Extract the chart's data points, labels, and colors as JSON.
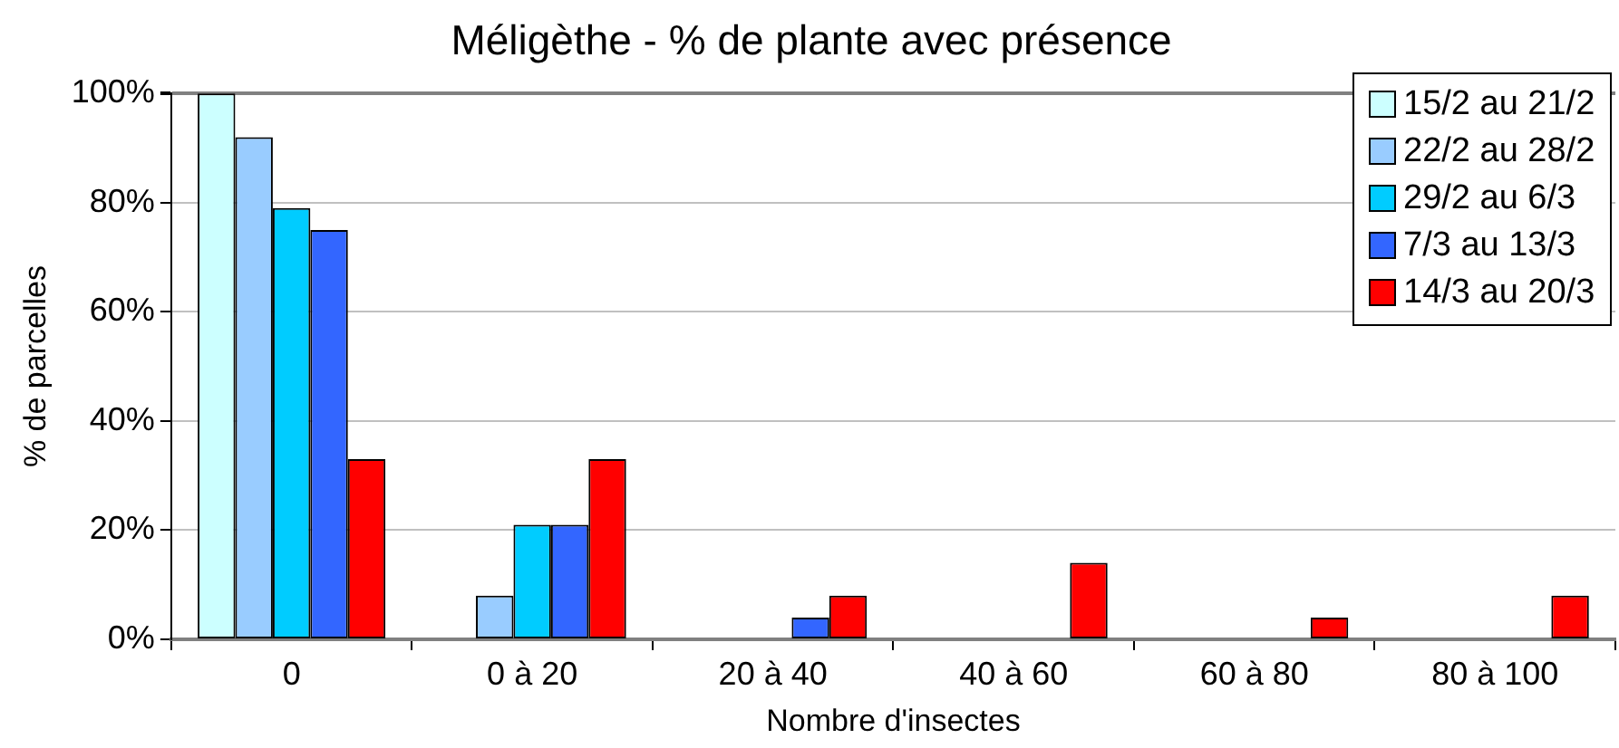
{
  "chart_data": {
    "type": "bar",
    "title": "Méligèthe - % de plante avec présence",
    "xlabel": "Nombre d'insectes",
    "ylabel": "% de parcelles",
    "categories": [
      "0",
      "0 à 20",
      "20 à 40",
      "40 à 60",
      "60 à 80",
      "80 à 100"
    ],
    "series": [
      {
        "name": "15/2 au 21/2",
        "color": "#ccffff",
        "values": [
          100,
          0,
          0,
          0,
          0,
          0
        ]
      },
      {
        "name": "22/2 au 28/2",
        "color": "#99ccff",
        "values": [
          92,
          8,
          0,
          0,
          0,
          0
        ]
      },
      {
        "name": "29/2 au 6/3",
        "color": "#00ccff",
        "values": [
          79,
          21,
          0,
          0,
          0,
          0
        ]
      },
      {
        "name": "7/3 au 13/3",
        "color": "#3366ff",
        "values": [
          75,
          21,
          4,
          0,
          0,
          0
        ]
      },
      {
        "name": "14/3 au 20/3",
        "color": "#ff0000",
        "values": [
          33,
          33,
          8,
          14,
          4,
          8
        ]
      }
    ],
    "ylim": [
      0,
      100
    ],
    "yticks": [
      {
        "value": 0,
        "label": "0%"
      },
      {
        "value": 20,
        "label": "20%"
      },
      {
        "value": 40,
        "label": "40%"
      },
      {
        "value": 60,
        "label": "60%"
      },
      {
        "value": 80,
        "label": "80%"
      },
      {
        "value": 100,
        "label": "100%"
      }
    ],
    "grid": "y",
    "legend": "top right"
  }
}
